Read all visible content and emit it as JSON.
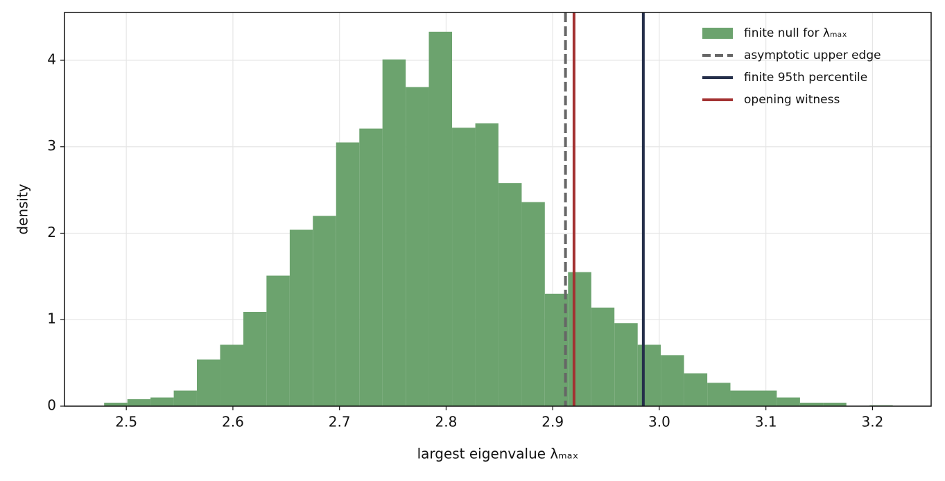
{
  "chart_data": {
    "type": "histogram",
    "xlabel": "largest eigenvalue λₘₐₓ",
    "ylabel": "density",
    "name": "finite null for λₘₐₓ",
    "color": "#6ca36e",
    "bins": [
      2.4792,
      2.501,
      2.5227,
      2.5445,
      2.5662,
      2.588,
      2.6098,
      2.6315,
      2.6533,
      2.675,
      2.6968,
      2.7186,
      2.7403,
      2.7621,
      2.7838,
      2.8056,
      2.8274,
      2.8491,
      2.8709,
      2.8926,
      2.9144,
      2.9362,
      2.9579,
      2.9797,
      3.0014,
      3.0232,
      3.045,
      3.0667,
      3.0885,
      3.1102,
      3.132,
      3.1538,
      3.1755,
      3.1973,
      3.219
    ],
    "values": [
      0.04,
      0.08,
      0.1,
      0.18,
      0.54,
      0.71,
      1.09,
      1.51,
      2.04,
      2.2,
      3.05,
      3.21,
      4.01,
      3.69,
      4.33,
      3.22,
      3.27,
      2.58,
      2.36,
      1.3,
      1.55,
      1.14,
      0.96,
      0.71,
      0.59,
      0.38,
      0.27,
      0.18,
      0.18,
      0.1,
      0.04,
      0.04,
      0,
      0.01
    ],
    "lines": [
      {
        "name": "asymptotic upper edge",
        "value": 2.912,
        "color": "#666666",
        "style": "dashed"
      },
      {
        "name": "finite 95th percentile",
        "value": 2.985,
        "color": "#252f4a",
        "style": "solid"
      },
      {
        "name": "opening witness",
        "value": 2.92,
        "color": "#a33232",
        "style": "solid"
      }
    ],
    "xlim": [
      2.442,
      3.255
    ],
    "ylim": [
      0,
      4.553
    ],
    "xticks": [
      2.5,
      2.6,
      2.7,
      2.8,
      2.9,
      {
        "value": 3,
        "label": "3.0"
      },
      3.1,
      3.2
    ],
    "yticks": [
      0,
      1,
      2,
      3,
      4
    ],
    "grid": true,
    "legend": "upper right"
  }
}
